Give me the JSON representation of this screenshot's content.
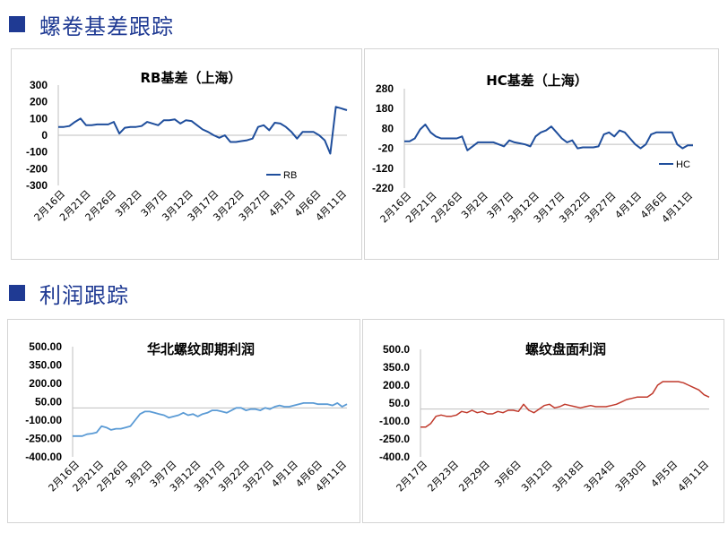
{
  "sections": [
    {
      "title": "螺卷基差跟踪"
    },
    {
      "title": "利润跟踪"
    }
  ],
  "chart_data": [
    {
      "type": "line",
      "title": "RB基差（上海）",
      "series": [
        {
          "name": "RB",
          "color": "#1f4e9c",
          "values": [
            50,
            50,
            55,
            80,
            100,
            60,
            60,
            65,
            65,
            65,
            80,
            10,
            45,
            50,
            50,
            55,
            80,
            70,
            60,
            90,
            90,
            95,
            70,
            90,
            85,
            60,
            35,
            20,
            0,
            -15,
            0,
            -40,
            -40,
            -35,
            -30,
            -20,
            50,
            60,
            30,
            75,
            70,
            50,
            20,
            -20,
            20,
            20,
            20,
            0,
            -30,
            -110,
            170,
            160,
            150
          ]
        }
      ],
      "x_ticks": [
        "2月16日",
        "2月21日",
        "2月26日",
        "3月2日",
        "3月7日",
        "3月12日",
        "3月17日",
        "3月22日",
        "3月27日",
        "4月1日",
        "4月6日",
        "4月11日"
      ],
      "y_ticks": [
        "300",
        "200",
        "100",
        "0",
        "-100",
        "-200",
        "-300"
      ],
      "ylim": [
        -300,
        300
      ]
    },
    {
      "type": "line",
      "title": "HC基差（上海）",
      "series": [
        {
          "name": "HC",
          "color": "#1f4e9c",
          "values": [
            15,
            15,
            30,
            75,
            100,
            60,
            40,
            30,
            30,
            30,
            30,
            40,
            -30,
            -10,
            10,
            10,
            10,
            10,
            0,
            -10,
            20,
            10,
            5,
            0,
            -10,
            40,
            60,
            70,
            90,
            60,
            30,
            10,
            20,
            -20,
            -15,
            -15,
            -15,
            -10,
            50,
            60,
            40,
            70,
            60,
            30,
            0,
            -20,
            0,
            50,
            60,
            60,
            60,
            60,
            0,
            -20,
            -5,
            -5
          ]
        }
      ],
      "x_ticks": [
        "2月16日",
        "2月21日",
        "2月26日",
        "3月2日",
        "3月7日",
        "3月12日",
        "3月17日",
        "3月22日",
        "3月27日",
        "4月1日",
        "4月6日",
        "4月11日"
      ],
      "y_ticks": [
        "280",
        "180",
        "80",
        "-20",
        "-120",
        "-220"
      ],
      "ylim": [
        -220,
        280
      ]
    },
    {
      "type": "line",
      "title": "华北螺纹即期利润",
      "series": [
        {
          "name": "",
          "color": "#5b9bd5",
          "values": [
            -230,
            -230,
            -230,
            -215,
            -210,
            -200,
            -150,
            -160,
            -180,
            -170,
            -170,
            -160,
            -150,
            -100,
            -50,
            -30,
            -30,
            -40,
            -50,
            -60,
            -80,
            -70,
            -60,
            -40,
            -60,
            -50,
            -70,
            -50,
            -40,
            -20,
            -20,
            -30,
            -40,
            -20,
            0,
            0,
            -20,
            -10,
            -10,
            -20,
            0,
            -10,
            10,
            20,
            10,
            10,
            20,
            30,
            40,
            40,
            40,
            30,
            30,
            30,
            20,
            40,
            10,
            30
          ]
        }
      ],
      "x_ticks": [
        "2月16日",
        "2月21日",
        "2月26日",
        "3月2日",
        "3月7日",
        "3月12日",
        "3月17日",
        "3月22日",
        "3月27日",
        "4月1日",
        "4月6日",
        "4月11日"
      ],
      "y_ticks": [
        "500.00",
        "350.00",
        "200.00",
        "50.00",
        "-100.00",
        "-250.00",
        "-400.00"
      ],
      "ylim": [
        -400,
        500
      ]
    },
    {
      "type": "line",
      "title": "螺纹盘面利润",
      "series": [
        {
          "name": "",
          "color": "#c0392b",
          "values": [
            -150,
            -150,
            -120,
            -60,
            -50,
            -60,
            -60,
            -50,
            -20,
            -30,
            -10,
            -30,
            -20,
            -40,
            -40,
            -20,
            -30,
            -10,
            -10,
            -20,
            40,
            -10,
            -30,
            0,
            30,
            40,
            10,
            20,
            40,
            30,
            20,
            10,
            20,
            30,
            20,
            20,
            20,
            30,
            40,
            60,
            80,
            90,
            100,
            100,
            100,
            130,
            200,
            230,
            230,
            230,
            230,
            220,
            200,
            180,
            160,
            120,
            100
          ]
        }
      ],
      "x_ticks": [
        "2月17日",
        "2月23日",
        "2月29日",
        "3月6日",
        "3月12日",
        "3月18日",
        "3月24日",
        "3月30日",
        "4月5日",
        "4月11日"
      ],
      "y_ticks": [
        "500.0",
        "350.0",
        "200.0",
        "50.0",
        "-100.0",
        "-250.0",
        "-400.0"
      ],
      "ylim": [
        -400,
        500
      ]
    }
  ]
}
